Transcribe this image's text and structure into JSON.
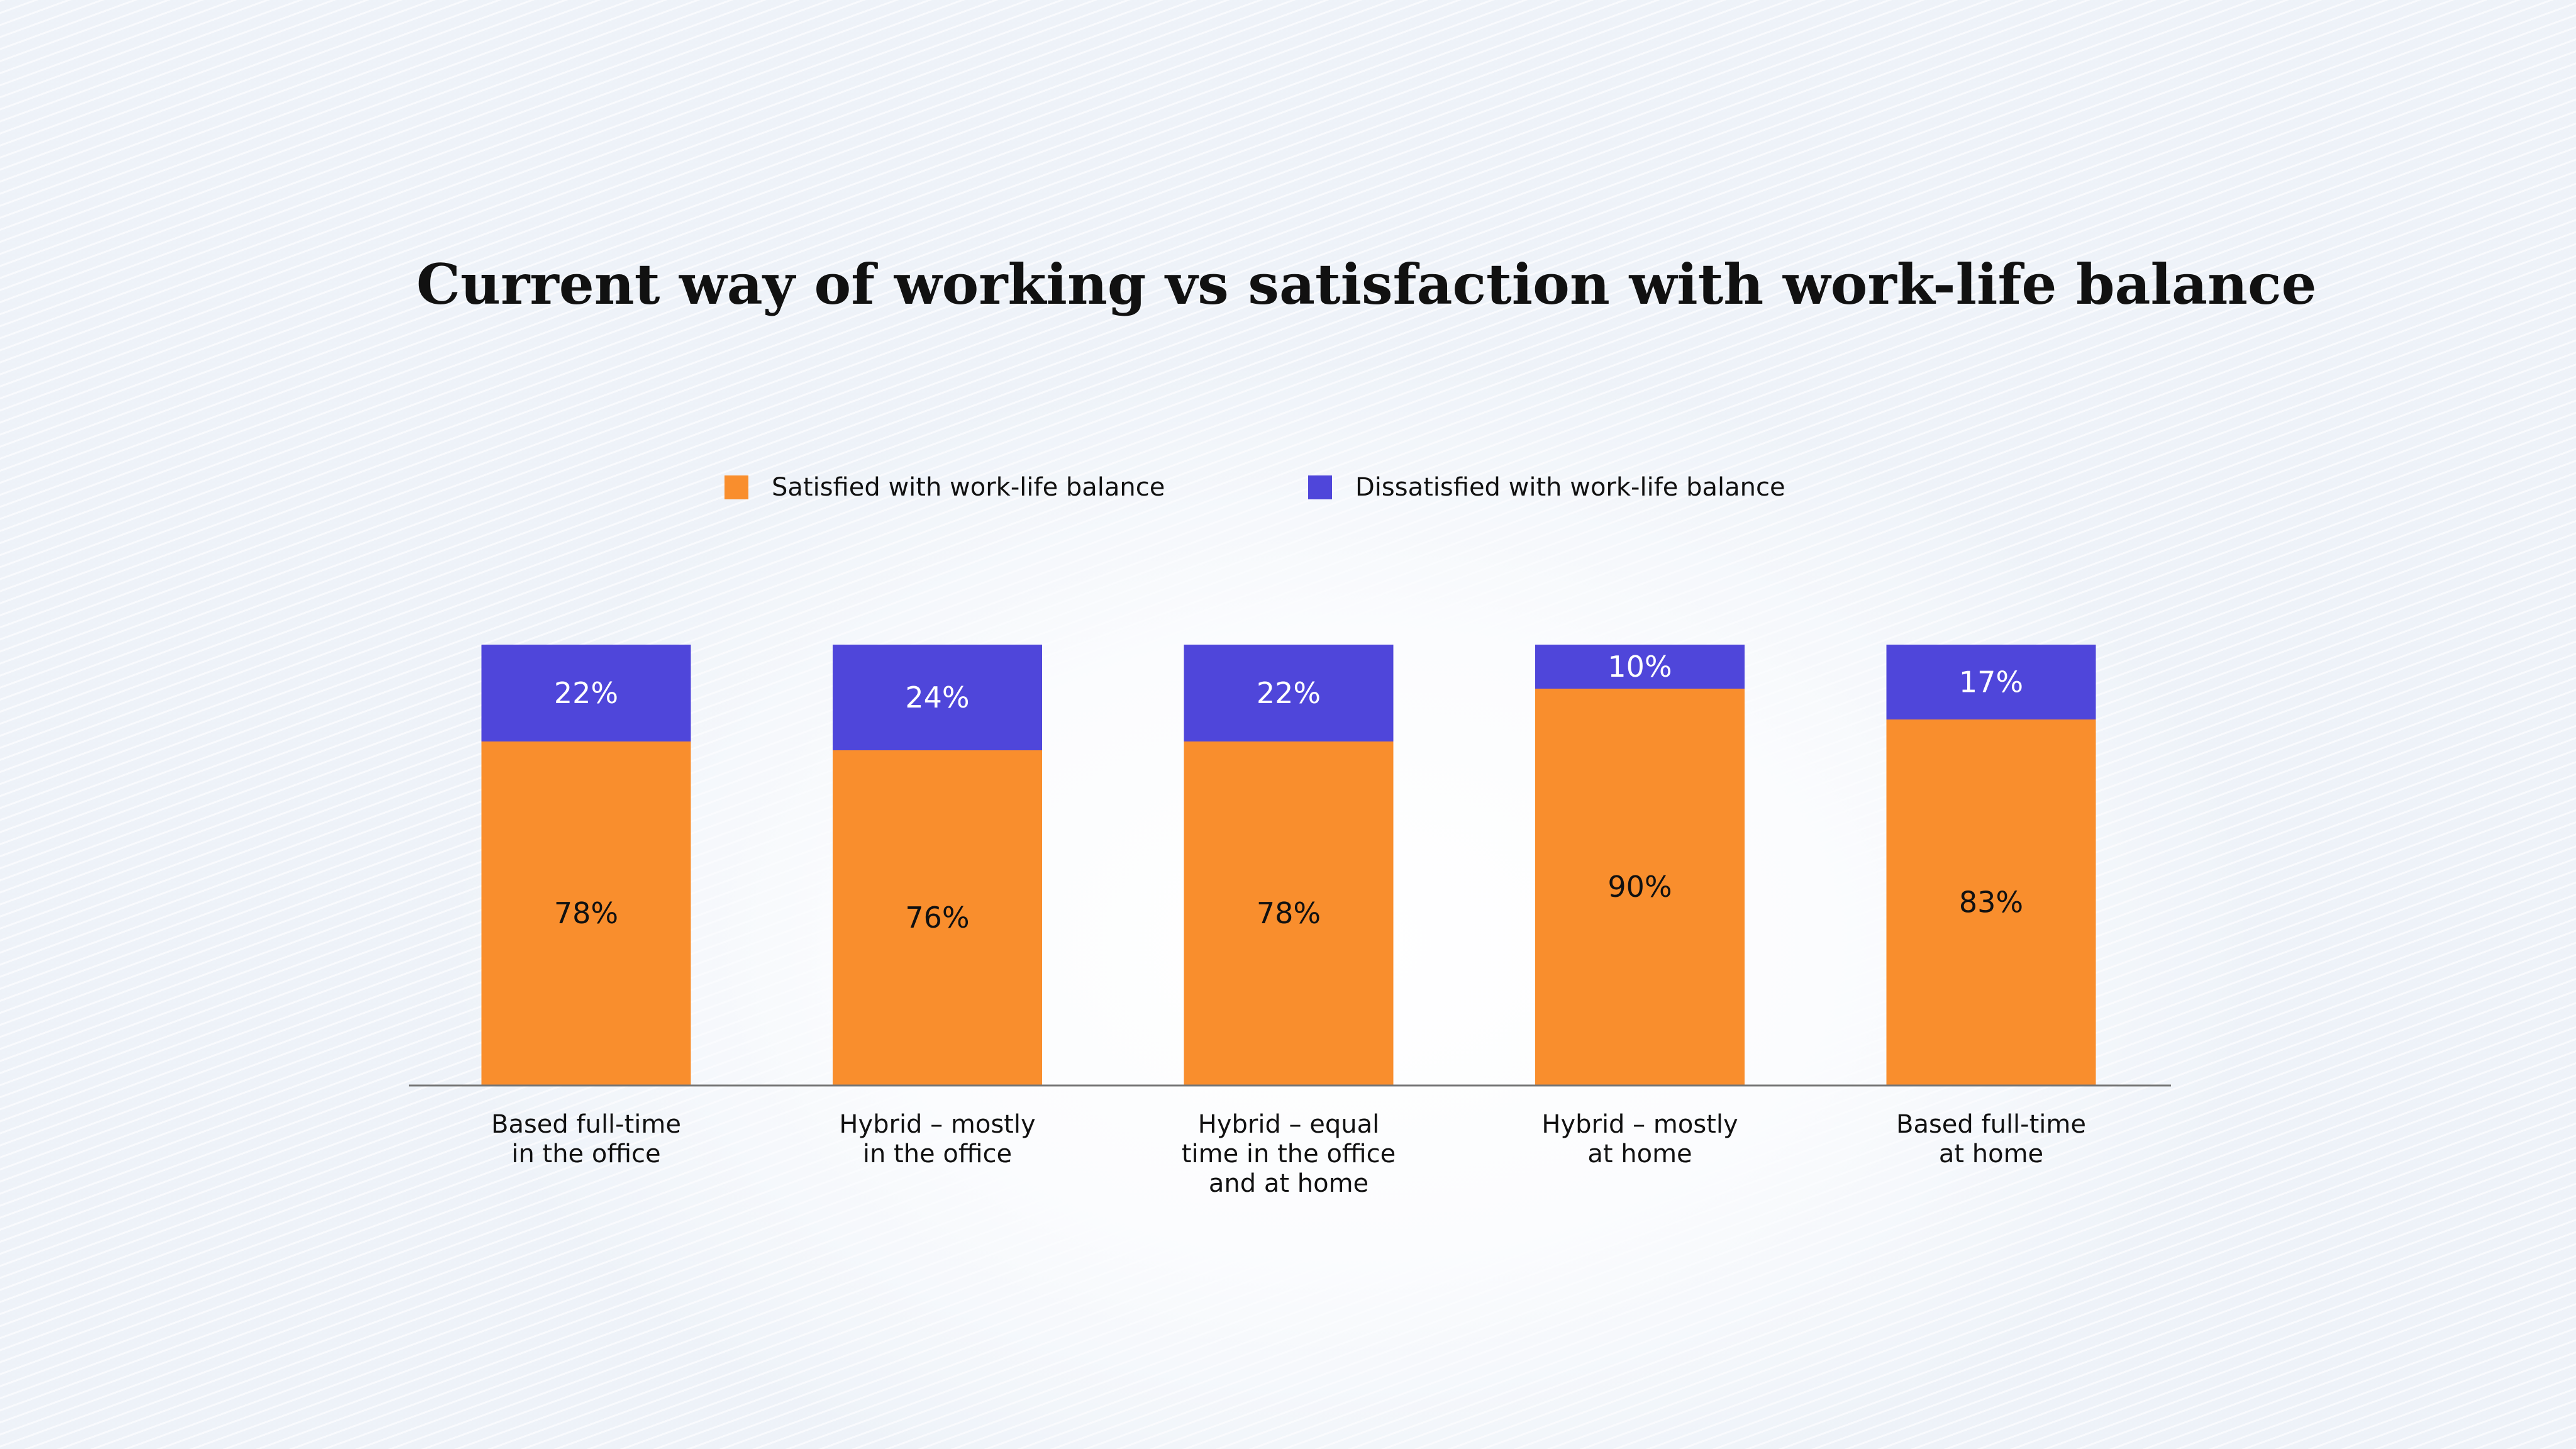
{
  "chart_data": {
    "type": "bar",
    "stacked": true,
    "title": "Current way of working vs satisfaction with work-life balance",
    "xlabel": "",
    "ylabel": "",
    "ylim": [
      0,
      100
    ],
    "grid": false,
    "legend_position": "top",
    "categories": [
      [
        "Based full-time",
        "in the office"
      ],
      [
        "Hybrid – mostly",
        "in the office"
      ],
      [
        "Hybrid – equal",
        "time in the office",
        "and at home"
      ],
      [
        "Hybrid – mostly",
        "at home"
      ],
      [
        "Based full-time",
        "at home"
      ]
    ],
    "series": [
      {
        "name": "Satisfied with work-life balance",
        "values": [
          78,
          76,
          78,
          90,
          83
        ],
        "labels": [
          "78%",
          "76%",
          "78%",
          "90%",
          "83%"
        ],
        "color": "#F98E2D",
        "label_color": "#111111"
      },
      {
        "name": "Dissatisfied with work-life balance",
        "values": [
          22,
          24,
          22,
          10,
          17
        ],
        "labels": [
          "22%",
          "24%",
          "22%",
          "10%",
          "17%"
        ],
        "color": "#4F46DA",
        "label_color": "#ffffff"
      }
    ],
    "axis_line_color": "#777777"
  }
}
